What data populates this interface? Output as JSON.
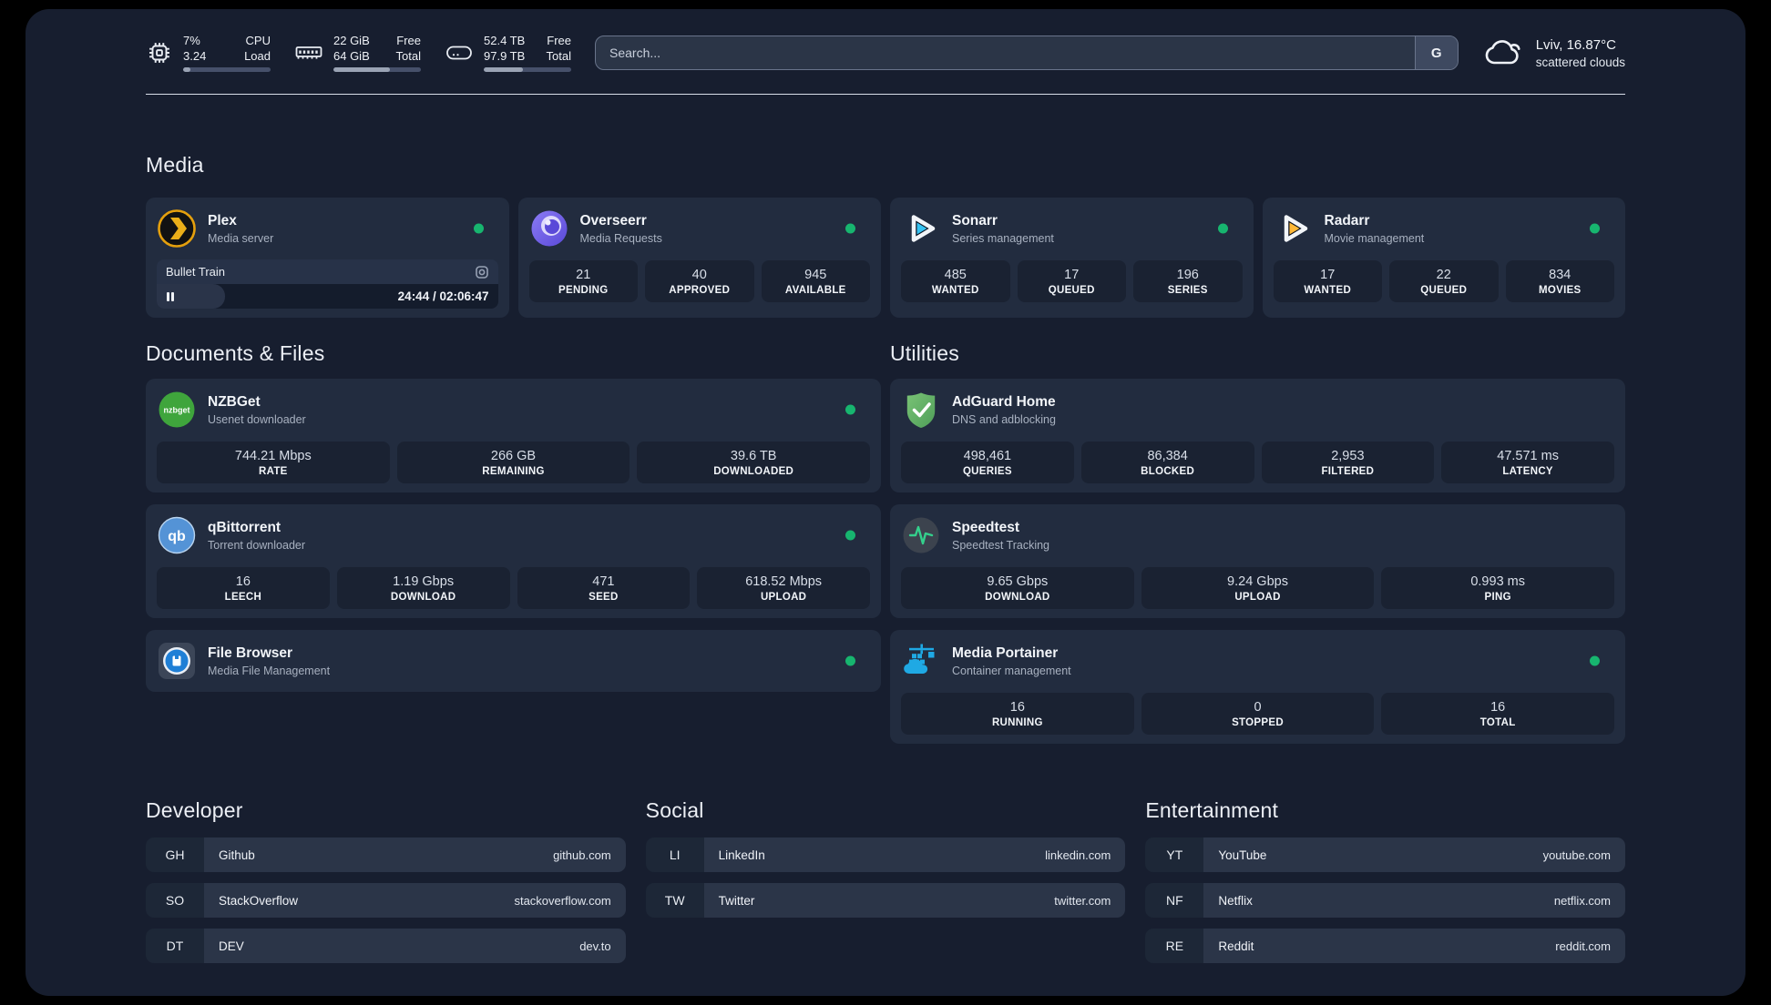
{
  "header": {
    "stats": [
      {
        "line1": "7%",
        "line2": "3.24",
        "label1": "CPU",
        "label2": "Load",
        "bar_percent": 8
      },
      {
        "line1": "22 GiB",
        "line2": "64 GiB",
        "label1": "Free",
        "label2": "Total",
        "bar_percent": 65
      },
      {
        "line1": "52.4 TB",
        "line2": "97.9 TB",
        "label1": "Free",
        "label2": "Total",
        "bar_percent": 45
      }
    ],
    "search": {
      "placeholder": "Search...",
      "button_label": "G"
    },
    "weather": {
      "location": "Lviv, 16.87°C",
      "condition": "scattered clouds"
    }
  },
  "sections": {
    "media": {
      "title": "Media",
      "apps": [
        {
          "name": "Plex",
          "subtitle": "Media server",
          "online": true,
          "player": {
            "title": "Bullet Train",
            "time": "24:44 / 02:06:47",
            "progress_percent": 20
          }
        },
        {
          "name": "Overseerr",
          "subtitle": "Media Requests",
          "online": true,
          "stats": [
            {
              "value": "21",
              "label": "PENDING"
            },
            {
              "value": "40",
              "label": "APPROVED"
            },
            {
              "value": "945",
              "label": "AVAILABLE"
            }
          ]
        },
        {
          "name": "Sonarr",
          "subtitle": "Series management",
          "online": true,
          "stats": [
            {
              "value": "485",
              "label": "WANTED"
            },
            {
              "value": "17",
              "label": "QUEUED"
            },
            {
              "value": "196",
              "label": "SERIES"
            }
          ]
        },
        {
          "name": "Radarr",
          "subtitle": "Movie management",
          "online": true,
          "stats": [
            {
              "value": "17",
              "label": "WANTED"
            },
            {
              "value": "22",
              "label": "QUEUED"
            },
            {
              "value": "834",
              "label": "MOVIES"
            }
          ]
        }
      ]
    },
    "documents": {
      "title": "Documents & Files",
      "apps": [
        {
          "name": "NZBGet",
          "subtitle": "Usenet downloader",
          "online": true,
          "icon_text": "nzbget",
          "stats": [
            {
              "value": "744.21 Mbps",
              "label": "RATE"
            },
            {
              "value": "266 GB",
              "label": "REMAINING"
            },
            {
              "value": "39.6 TB",
              "label": "DOWNLOADED"
            }
          ]
        },
        {
          "name": "qBittorrent",
          "subtitle": "Torrent downloader",
          "online": true,
          "icon_text": "qb",
          "stats": [
            {
              "value": "16",
              "label": "LEECH"
            },
            {
              "value": "1.19 Gbps",
              "label": "DOWNLOAD"
            },
            {
              "value": "471",
              "label": "SEED"
            },
            {
              "value": "618.52 Mbps",
              "label": "UPLOAD"
            }
          ]
        },
        {
          "name": "File Browser",
          "subtitle": "Media File Management",
          "online": true
        }
      ]
    },
    "utilities": {
      "title": "Utilities",
      "apps": [
        {
          "name": "AdGuard Home",
          "subtitle": "DNS and adblocking",
          "stats": [
            {
              "value": "498,461",
              "label": "QUERIES"
            },
            {
              "value": "86,384",
              "label": "BLOCKED"
            },
            {
              "value": "2,953",
              "label": "FILTERED"
            },
            {
              "value": "47.571 ms",
              "label": "LATENCY"
            }
          ]
        },
        {
          "name": "Speedtest",
          "subtitle": "Speedtest Tracking",
          "stats": [
            {
              "value": "9.65 Gbps",
              "label": "DOWNLOAD"
            },
            {
              "value": "9.24 Gbps",
              "label": "UPLOAD"
            },
            {
              "value": "0.993 ms",
              "label": "PING"
            }
          ]
        },
        {
          "name": "Media Portainer",
          "subtitle": "Container management",
          "online": true,
          "stats": [
            {
              "value": "16",
              "label": "RUNNING"
            },
            {
              "value": "0",
              "label": "STOPPED"
            },
            {
              "value": "16",
              "label": "TOTAL"
            }
          ]
        }
      ]
    }
  },
  "bookmarks": [
    {
      "title": "Developer",
      "items": [
        {
          "abbr": "GH",
          "name": "Github",
          "url": "github.com"
        },
        {
          "abbr": "SO",
          "name": "StackOverflow",
          "url": "stackoverflow.com"
        },
        {
          "abbr": "DT",
          "name": "DEV",
          "url": "dev.to"
        }
      ]
    },
    {
      "title": "Social",
      "items": [
        {
          "abbr": "LI",
          "name": "LinkedIn",
          "url": "linkedin.com"
        },
        {
          "abbr": "TW",
          "name": "Twitter",
          "url": "twitter.com"
        }
      ]
    },
    {
      "title": "Entertainment",
      "items": [
        {
          "abbr": "YT",
          "name": "YouTube",
          "url": "youtube.com"
        },
        {
          "abbr": "NF",
          "name": "Netflix",
          "url": "netflix.com"
        },
        {
          "abbr": "RE",
          "name": "Reddit",
          "url": "reddit.com"
        }
      ]
    }
  ],
  "colors": {
    "status_online": "#17b56f",
    "accent_plex": "#e5a00d",
    "accent_sonarr": "#36c3f2",
    "accent_radarr": "#ffb836"
  }
}
